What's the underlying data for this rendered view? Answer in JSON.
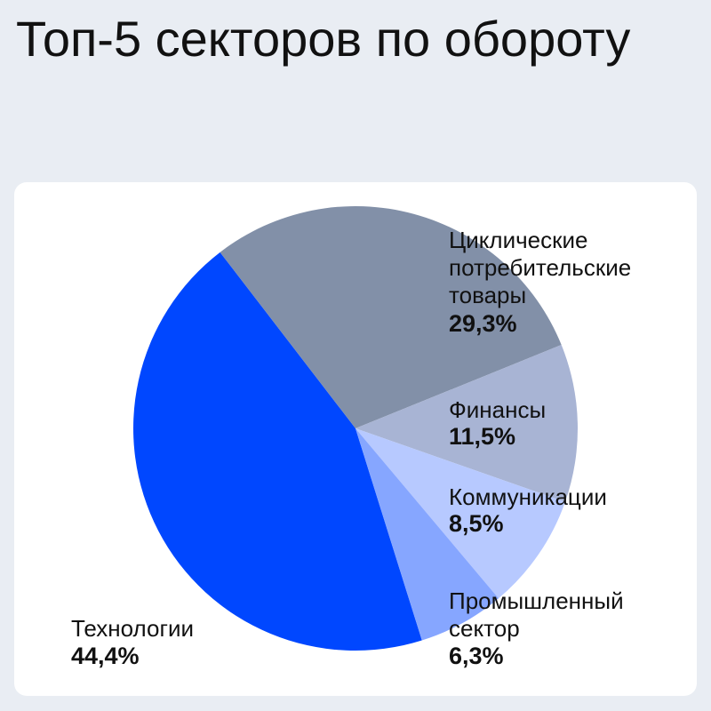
{
  "chart_data": {
    "type": "pie",
    "title": "Топ-5 секторов по обороту",
    "categories": [
      "Технологии",
      "Циклические потребительские товары",
      "Финансы",
      "Коммуникации",
      "Промышленный сектор"
    ],
    "values": [
      44.4,
      29.3,
      11.5,
      8.5,
      6.3
    ],
    "value_labels": [
      "44,4%",
      "29,3%",
      "11,5%",
      "8,5%",
      "6,3%"
    ],
    "colors": [
      "#0047ff",
      "#8290a8",
      "#a8b4d4",
      "#b7c9ff",
      "#86a6ff"
    ]
  }
}
